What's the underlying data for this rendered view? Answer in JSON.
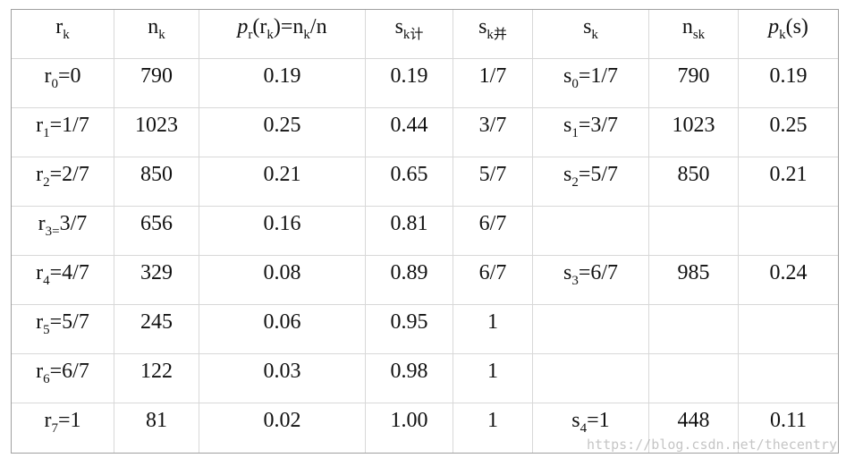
{
  "table": {
    "header": [
      [
        "r",
        {
          "sub": "k"
        }
      ],
      [
        "n",
        {
          "sub": "k"
        }
      ],
      [
        {
          "italic": "p"
        },
        {
          "sub": "r"
        },
        "(r",
        {
          "sub": "k"
        },
        ")=n",
        {
          "sub": "k"
        },
        "/n"
      ],
      [
        "s",
        {
          "sub": "k计"
        }
      ],
      [
        "s",
        {
          "sub": "k并"
        }
      ],
      [
        "s",
        {
          "sub": "k"
        }
      ],
      [
        "n",
        {
          "sub": "sk"
        }
      ],
      [
        {
          "italic": "p"
        },
        {
          "sub": "k"
        },
        "(s)"
      ]
    ],
    "rows": [
      [
        [
          "r",
          {
            "sub": "0"
          },
          "=0"
        ],
        [
          "790"
        ],
        [
          "0.19"
        ],
        [
          "0.19"
        ],
        [
          "1/7"
        ],
        [
          "s",
          {
            "sub": "0"
          },
          "=1/7"
        ],
        [
          "790"
        ],
        [
          "0.19"
        ]
      ],
      [
        [
          "r",
          {
            "sub": "1"
          },
          "=1/7"
        ],
        [
          "1023"
        ],
        [
          "0.25"
        ],
        [
          "0.44"
        ],
        [
          "3/7"
        ],
        [
          "s",
          {
            "sub": "1"
          },
          "=3/7"
        ],
        [
          "1023"
        ],
        [
          "0.25"
        ]
      ],
      [
        [
          "r",
          {
            "sub": "2"
          },
          "=2/7"
        ],
        [
          "850"
        ],
        [
          "0.21"
        ],
        [
          "0.65"
        ],
        [
          "5/7"
        ],
        [
          "s",
          {
            "sub": "2"
          },
          "=5/7"
        ],
        [
          "850"
        ],
        [
          "0.21"
        ]
      ],
      [
        [
          "r",
          {
            "sub": "3="
          },
          "3/7"
        ],
        [
          "656"
        ],
        [
          "0.16"
        ],
        [
          "0.81"
        ],
        [
          "6/7"
        ],
        [],
        [],
        []
      ],
      [
        [
          "r",
          {
            "sub": "4"
          },
          "=4/7"
        ],
        [
          "329"
        ],
        [
          "0.08"
        ],
        [
          "0.89"
        ],
        [
          "6/7"
        ],
        [
          "s",
          {
            "sub": "3"
          },
          "=6/7"
        ],
        [
          "985"
        ],
        [
          "0.24"
        ]
      ],
      [
        [
          "r",
          {
            "sub": "5"
          },
          "=5/7"
        ],
        [
          "245"
        ],
        [
          "0.06"
        ],
        [
          "0.95"
        ],
        [
          "1"
        ],
        [],
        [],
        []
      ],
      [
        [
          "r",
          {
            "sub": "6"
          },
          "=6/7"
        ],
        [
          "122"
        ],
        [
          "0.03"
        ],
        [
          "0.98"
        ],
        [
          "1"
        ],
        [],
        [],
        []
      ],
      [
        [
          "r",
          {
            "sub": "7"
          },
          "=1"
        ],
        [
          "81"
        ],
        [
          "0.02"
        ],
        [
          "1.00"
        ],
        [
          "1"
        ],
        [
          "s",
          {
            "sub": "4"
          },
          "=1"
        ],
        [
          "448"
        ],
        [
          "0.11"
        ]
      ]
    ]
  },
  "watermark": "https://blog.csdn.net/thecentry"
}
